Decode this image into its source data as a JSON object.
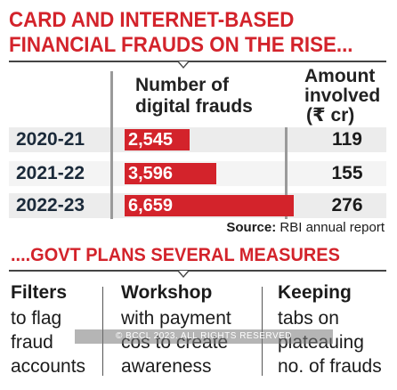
{
  "headline": {
    "line1": "CARD AND INTERNET-BASED",
    "line2": "FINANCIAL FRAUDS ON THE RISE..."
  },
  "columns": {
    "frauds_line1": "Number of",
    "frauds_line2": "digital frauds",
    "amount_line1": "Amount",
    "amount_line2": "involved",
    "amount_line3": "(₹ cr)"
  },
  "chart_data": {
    "type": "bar",
    "title": "CARD AND INTERNET-BASED FINANCIAL FRAUDS ON THE RISE...",
    "categories": [
      "2020-21",
      "2021-22",
      "2022-23"
    ],
    "series": [
      {
        "name": "Number of digital frauds",
        "values": [
          2545,
          3596,
          6659
        ],
        "labels": [
          "2,545",
          "3,596",
          "6,659"
        ]
      },
      {
        "name": "Amount involved (₹ cr)",
        "values": [
          119,
          155,
          276
        ],
        "labels": [
          "119",
          "155",
          "276"
        ]
      }
    ],
    "bar_color": "#d3232b"
  },
  "source": {
    "label": "Source:",
    "text": "RBI annual report"
  },
  "measures": {
    "heading": "....GOVT PLANS SEVERAL MEASURES",
    "items": [
      {
        "title": "Filters",
        "lines": [
          "to flag",
          "fraud",
          "accounts"
        ]
      },
      {
        "title": "Workshop",
        "lines": [
          "with payment",
          "cos to create",
          "awareness"
        ]
      },
      {
        "title": "Keeping",
        "lines": [
          "tabs on",
          "plateauing",
          "no. of frauds"
        ]
      }
    ]
  },
  "watermark": "© BCCL 2023. ALL RIGHTS RESERVED"
}
